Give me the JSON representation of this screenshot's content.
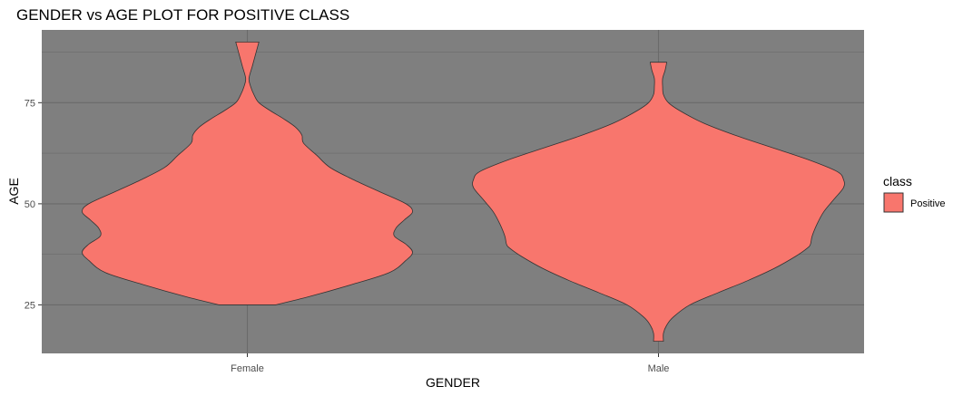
{
  "chart_data": {
    "type": "violin",
    "title": "GENDER vs AGE PLOT FOR POSITIVE CLASS",
    "xlabel": "GENDER",
    "ylabel": "AGE",
    "categories": [
      "Female",
      "Male"
    ],
    "ylim": [
      13,
      93
    ],
    "y_ticks": [
      25,
      50,
      75
    ],
    "grid": true,
    "panel_color": "#7f7f7f",
    "gridline_color": "#6a6a6a",
    "fill_color": "#f8766d",
    "legend": {
      "title": "class",
      "entries": [
        "Positive"
      ],
      "position": "right"
    },
    "violins": [
      {
        "category": "Female",
        "min": 25,
        "max": 90,
        "profile": [
          [
            25,
            0.17
          ],
          [
            27,
            0.37
          ],
          [
            30,
            0.63
          ],
          [
            33,
            0.86
          ],
          [
            36,
            0.96
          ],
          [
            38,
            1.0
          ],
          [
            40,
            0.96
          ],
          [
            42,
            0.89
          ],
          [
            44,
            0.9
          ],
          [
            46,
            0.95
          ],
          [
            48,
            1.0
          ],
          [
            50,
            0.96
          ],
          [
            53,
            0.8
          ],
          [
            56,
            0.64
          ],
          [
            59,
            0.5
          ],
          [
            62,
            0.42
          ],
          [
            65,
            0.34
          ],
          [
            67,
            0.33
          ],
          [
            69,
            0.29
          ],
          [
            71,
            0.22
          ],
          [
            73,
            0.14
          ],
          [
            75,
            0.07
          ],
          [
            77,
            0.04
          ],
          [
            79,
            0.02
          ],
          [
            81,
            0.01
          ],
          [
            84,
            0.03
          ],
          [
            87,
            0.05
          ],
          [
            90,
            0.07
          ]
        ]
      },
      {
        "category": "Male",
        "min": 16,
        "max": 85,
        "profile": [
          [
            16,
            0.03
          ],
          [
            18,
            0.03
          ],
          [
            20,
            0.05
          ],
          [
            22,
            0.09
          ],
          [
            25,
            0.19
          ],
          [
            28,
            0.36
          ],
          [
            31,
            0.54
          ],
          [
            34,
            0.7
          ],
          [
            37,
            0.83
          ],
          [
            39,
            0.9
          ],
          [
            40,
            0.92
          ],
          [
            42,
            0.93
          ],
          [
            45,
            0.96
          ],
          [
            48,
            1.0
          ],
          [
            51,
            1.06
          ],
          [
            54,
            1.12
          ],
          [
            56,
            1.12
          ],
          [
            58,
            1.08
          ],
          [
            61,
            0.9
          ],
          [
            64,
            0.68
          ],
          [
            67,
            0.46
          ],
          [
            70,
            0.27
          ],
          [
            73,
            0.13
          ],
          [
            75,
            0.06
          ],
          [
            77,
            0.03
          ],
          [
            79,
            0.025
          ],
          [
            81,
            0.025
          ],
          [
            83,
            0.04
          ],
          [
            85,
            0.05
          ]
        ]
      }
    ]
  }
}
